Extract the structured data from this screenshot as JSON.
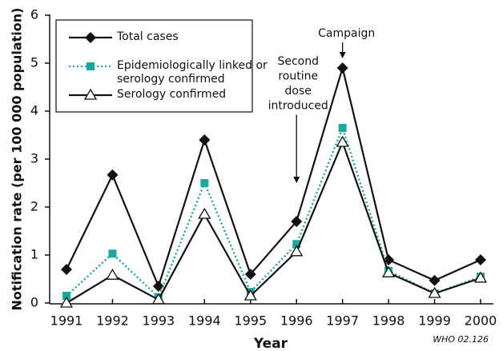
{
  "chart_data": {
    "type": "line",
    "x_label": "Year",
    "y_label": "Notification rate (per 100 000 population)",
    "categories": [
      "1991",
      "1992",
      "1993",
      "1994",
      "1995",
      "1996",
      "1997",
      "1998",
      "1999",
      "2000"
    ],
    "series": [
      {
        "name": "Total cases",
        "color": "#111111",
        "marker": "diamond",
        "dash": "solid",
        "values": [
          0.7,
          2.67,
          0.35,
          3.4,
          0.6,
          1.7,
          4.9,
          0.9,
          0.47,
          0.9
        ]
      },
      {
        "name": "Epidemiologically linked or serology confirmed",
        "color": "#1aa99f",
        "marker": "square",
        "dash": "dotted",
        "values": [
          0.15,
          1.03,
          0.12,
          2.5,
          0.23,
          1.23,
          3.65,
          0.67,
          0.2,
          0.55
        ]
      },
      {
        "name": "Serology confirmed",
        "color": "#111111",
        "marker": "triangle",
        "dash": "solid",
        "values": [
          0,
          0.58,
          0.07,
          1.85,
          0.15,
          1.07,
          3.35,
          0.63,
          0.2,
          0.52
        ]
      }
    ],
    "ylim": [
      0,
      6
    ],
    "yticks": [
      0,
      1,
      2,
      3,
      4,
      5,
      6
    ],
    "annotations": [
      {
        "text": [
          "Campaign"
        ],
        "category": "1997"
      },
      {
        "text": [
          "Second",
          "routine",
          "dose",
          "introduced"
        ],
        "category": "1996"
      }
    ],
    "source": "WHO 02.126"
  }
}
